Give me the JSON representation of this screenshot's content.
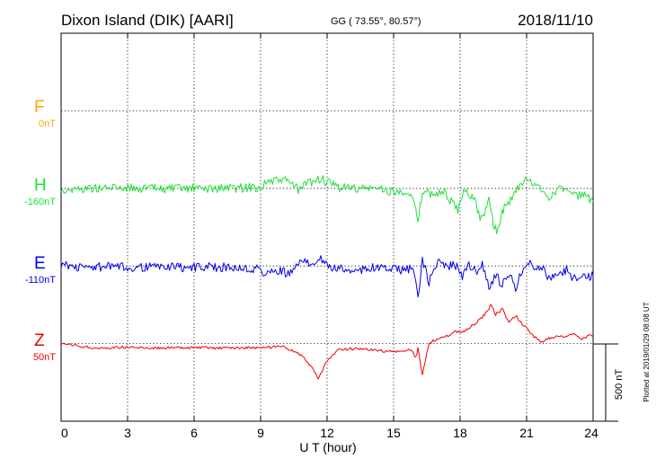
{
  "header": {
    "title": "Dixon Island (DIK)  [AARI]",
    "coordinates": "GG ( 73.55°,  80.57°)",
    "date": "2018/11/10"
  },
  "plotted_note": "Plotted at 2019/01/29 08:08 UT",
  "scale_label": "500 nT",
  "chart_data": {
    "type": "line",
    "xlabel": "U T (hour)",
    "xlim": [
      0,
      24
    ],
    "x_ticks": [
      "0",
      "3",
      "6",
      "9",
      "12",
      "15",
      "18",
      "21",
      "24"
    ],
    "grid": true,
    "units": "nT",
    "series": [
      {
        "name": "F",
        "offset_label": "0nT",
        "color": "#ffa500",
        "values": []
      },
      {
        "name": "H",
        "offset_label": "-160nT",
        "color": "#22e03a",
        "x": [
          0,
          0.5,
          1,
          1.5,
          2,
          2.5,
          3,
          3.5,
          4,
          4.5,
          5,
          5.5,
          6,
          6.5,
          7,
          7.5,
          8,
          8.5,
          9,
          9.3,
          9.6,
          10,
          10.5,
          10.7,
          11,
          11.3,
          11.7,
          12,
          12.5,
          13,
          13.5,
          14,
          14.5,
          15,
          15.3,
          15.6,
          15.9,
          16.1,
          16.3,
          16.6,
          17,
          17.3,
          17.6,
          17.9,
          18.1,
          18.3,
          18.6,
          18.9,
          19.1,
          19.3,
          19.5,
          19.7,
          19.9,
          20.1,
          20.4,
          20.7,
          21,
          21.3,
          21.6,
          22,
          22.3,
          22.6,
          22.9,
          23.2,
          23.5,
          23.8,
          24
        ],
        "values": [
          -163,
          -160,
          -155,
          -150,
          -153,
          -145,
          -148,
          -152,
          -154,
          -155,
          -154,
          -156,
          -153,
          -155,
          -154,
          -150,
          -152,
          -145,
          -148,
          -105,
          -110,
          -95,
          -130,
          -170,
          -125,
          -110,
          -90,
          -115,
          -145,
          -150,
          -155,
          -152,
          -160,
          -175,
          -180,
          -160,
          -230,
          -380,
          -170,
          -190,
          -180,
          -180,
          -240,
          -300,
          -190,
          -185,
          -200,
          -340,
          -330,
          -180,
          -390,
          -430,
          -300,
          -260,
          -210,
          -130,
          -95,
          -130,
          -150,
          -210,
          -170,
          -150,
          -175,
          -200,
          -190,
          -220,
          -240
        ]
      },
      {
        "name": "E",
        "offset_label": "-110nT",
        "color": "#0000ee",
        "x": [
          0,
          0.5,
          1,
          1.5,
          2,
          2.5,
          3,
          3.5,
          4,
          4.5,
          5,
          5.5,
          6,
          6.5,
          7,
          7.5,
          8,
          8.5,
          9,
          9.2,
          9.5,
          10,
          10.3,
          10.6,
          11,
          11.3,
          11.6,
          12,
          12.5,
          13,
          13.5,
          14,
          14.5,
          15,
          15.5,
          15.9,
          16.1,
          16.3,
          16.6,
          17,
          17.4,
          17.8,
          18.1,
          18.4,
          18.7,
          19,
          19.3,
          19.6,
          19.9,
          20.2,
          20.5,
          20.8,
          21.1,
          21.4,
          21.7,
          22,
          22.4,
          22.8,
          23.1,
          23.5,
          23.8,
          24
        ],
        "values": [
          -90,
          -110,
          -115,
          -112,
          -110,
          -113,
          -115,
          -112,
          -112,
          -110,
          -108,
          -115,
          -113,
          -110,
          -114,
          -112,
          -118,
          -122,
          -125,
          -165,
          -140,
          -140,
          -160,
          -110,
          -70,
          -85,
          -45,
          -110,
          -125,
          -130,
          -130,
          -115,
          -120,
          -125,
          -130,
          -120,
          -320,
          -70,
          -210,
          -80,
          -110,
          -100,
          -170,
          -100,
          -140,
          -100,
          -240,
          -160,
          -230,
          -150,
          -260,
          -130,
          -80,
          -110,
          -115,
          -180,
          -170,
          -130,
          -190,
          -150,
          -180,
          -165
        ]
      },
      {
        "name": "Z",
        "offset_label": "50nT",
        "color": "#ee0000",
        "x": [
          0,
          0.5,
          1,
          1.5,
          2,
          2.5,
          3,
          3.5,
          4,
          4.5,
          5,
          5.5,
          6,
          6.5,
          7,
          7.5,
          8,
          8.5,
          9,
          9.5,
          10,
          10.3,
          10.7,
          11,
          11.3,
          11.6,
          12,
          12.5,
          13,
          13.5,
          14,
          14.5,
          15,
          15.5,
          15.8,
          16,
          16.1,
          16.3,
          16.6,
          17,
          17.4,
          17.8,
          18.1,
          18.4,
          18.7,
          19,
          19.2,
          19.4,
          19.6,
          19.9,
          20.2,
          20.5,
          20.8,
          21.1,
          21.4,
          21.7,
          22,
          22.4,
          22.8,
          23.1,
          23.5,
          23.8,
          24
        ],
        "values": [
          48,
          42,
          32,
          25,
          22,
          28,
          30,
          26,
          25,
          24,
          25,
          23,
          26,
          25,
          23,
          26,
          24,
          27,
          22,
          28,
          30,
          15,
          -10,
          -50,
          -100,
          -175,
          -60,
          10,
          20,
          15,
          12,
          5,
          0,
          3,
          15,
          -40,
          20,
          -150,
          60,
          80,
          100,
          130,
          130,
          150,
          185,
          220,
          260,
          300,
          240,
          275,
          190,
          235,
          180,
          135,
          90,
          60,
          85,
          100,
          95,
          120,
          85,
          105,
          100
        ]
      }
    ]
  }
}
